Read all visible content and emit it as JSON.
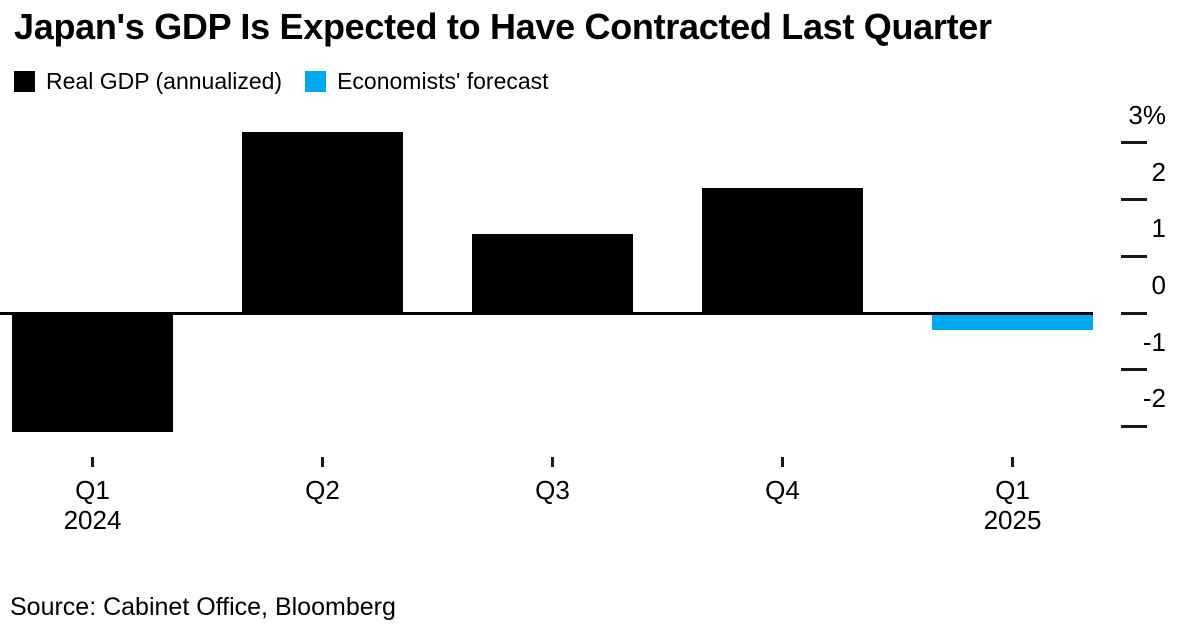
{
  "header": {
    "title": "Japan's GDP Is Expected to Have Contracted Last Quarter"
  },
  "legend": {
    "items": [
      {
        "id": "actual",
        "label": "Real GDP (annualized)",
        "color": "#000000"
      },
      {
        "id": "forecast",
        "label": "Economists' forecast",
        "color": "#00A8EE"
      }
    ]
  },
  "chart_data": {
    "type": "bar",
    "title": "Japan's GDP Is Expected to Have Contracted Last Quarter",
    "xlabel": "",
    "ylabel": "",
    "y_unit": "%",
    "categories": [
      "Q1 2024",
      "Q2 2024",
      "Q3 2024",
      "Q4 2024",
      "Q1 2025"
    ],
    "bars": [
      {
        "quarter": "Q1",
        "year_label": "2024",
        "value": -2.1,
        "series": "actual"
      },
      {
        "quarter": "Q2",
        "year_label": "",
        "value": 3.2,
        "series": "actual"
      },
      {
        "quarter": "Q3",
        "year_label": "",
        "value": 1.4,
        "series": "actual"
      },
      {
        "quarter": "Q4",
        "year_label": "",
        "value": 2.2,
        "series": "actual"
      },
      {
        "quarter": "Q1",
        "year_label": "2025",
        "value": -0.3,
        "series": "forecast"
      }
    ],
    "series": [
      {
        "id": "actual",
        "name": "Real GDP (annualized)",
        "color": "#000000"
      },
      {
        "id": "forecast",
        "name": "Economists' forecast",
        "color": "#00A8EE"
      }
    ],
    "yticks": [
      {
        "value": 3,
        "label": "3%"
      },
      {
        "value": 2,
        "label": "2"
      },
      {
        "value": 1,
        "label": "1"
      },
      {
        "value": 0,
        "label": "0"
      },
      {
        "value": -1,
        "label": "-1"
      },
      {
        "value": -2,
        "label": "-2"
      }
    ],
    "ylim": [
      -2.6,
      3.4
    ],
    "grid": false,
    "legend_position": "top-left",
    "value_axis_side": "right",
    "baseline": 0
  },
  "footer": {
    "source": "Source: Cabinet Office, Bloomberg"
  }
}
